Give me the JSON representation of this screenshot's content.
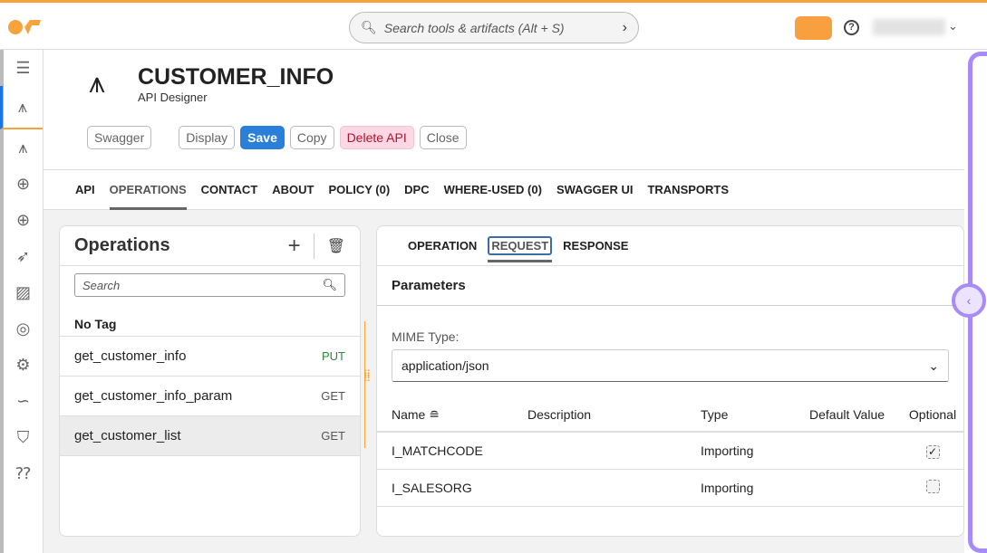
{
  "topbar": {
    "search_placeholder": "Search tools & artifacts (Alt + S)",
    "search_chevron": "›",
    "help": "?",
    "user_chevron": "⌄"
  },
  "colors": {
    "brand": "#f7a33b",
    "save": "#2a7fd9",
    "delete_bg": "#fdd7e4",
    "delete_text": "#b0132b",
    "panel_accent": "#a78bfa"
  },
  "sidebar": {
    "items": [
      {
        "icon": "menu-expand-icon"
      },
      {
        "icon": "api-designer-icon",
        "active": true
      },
      {
        "icon": "api-icon"
      },
      {
        "icon": "integration-icon"
      },
      {
        "icon": "integration-2-icon"
      },
      {
        "icon": "rocket-icon"
      },
      {
        "icon": "image-icon"
      },
      {
        "icon": "palette-icon"
      },
      {
        "icon": "gear-icon"
      },
      {
        "icon": "flow-icon"
      },
      {
        "icon": "shield-icon"
      },
      {
        "icon": "help-chat-icon"
      }
    ]
  },
  "header": {
    "title": "CUSTOMER_INFO",
    "subtitle": "API Designer",
    "buttons": {
      "swagger": "Swagger",
      "display": "Display",
      "save": "Save",
      "copy": "Copy",
      "delete": "Delete API",
      "close": "Close"
    }
  },
  "tabs": [
    "API",
    "OPERATIONS",
    "CONTACT",
    "ABOUT",
    "POLICY (0)",
    "DPC",
    "WHERE-USED (0)",
    "SWAGGER UI",
    "TRANSPORTS"
  ],
  "operations": {
    "title": "Operations",
    "search_placeholder": "Search",
    "tag": "No Tag",
    "items": [
      {
        "name": "get_customer_info",
        "method": "PUT"
      },
      {
        "name": "get_customer_info_param",
        "method": "GET"
      },
      {
        "name": "get_customer_list",
        "method": "GET",
        "selected": true
      }
    ]
  },
  "request": {
    "tabs": [
      "OPERATION",
      "REQUEST",
      "RESPONSE"
    ],
    "section": "Parameters",
    "mime_label": "MIME Type:",
    "mime_value": "application/json",
    "columns": [
      "Name",
      "Description",
      "Type",
      "Default Value",
      "Optional"
    ],
    "rows": [
      {
        "name": "I_MATCHCODE",
        "description": "",
        "type": "Importing",
        "default": "",
        "optional": true
      },
      {
        "name": "I_SALESORG",
        "description": "",
        "type": "Importing",
        "default": "",
        "optional": false
      }
    ]
  }
}
